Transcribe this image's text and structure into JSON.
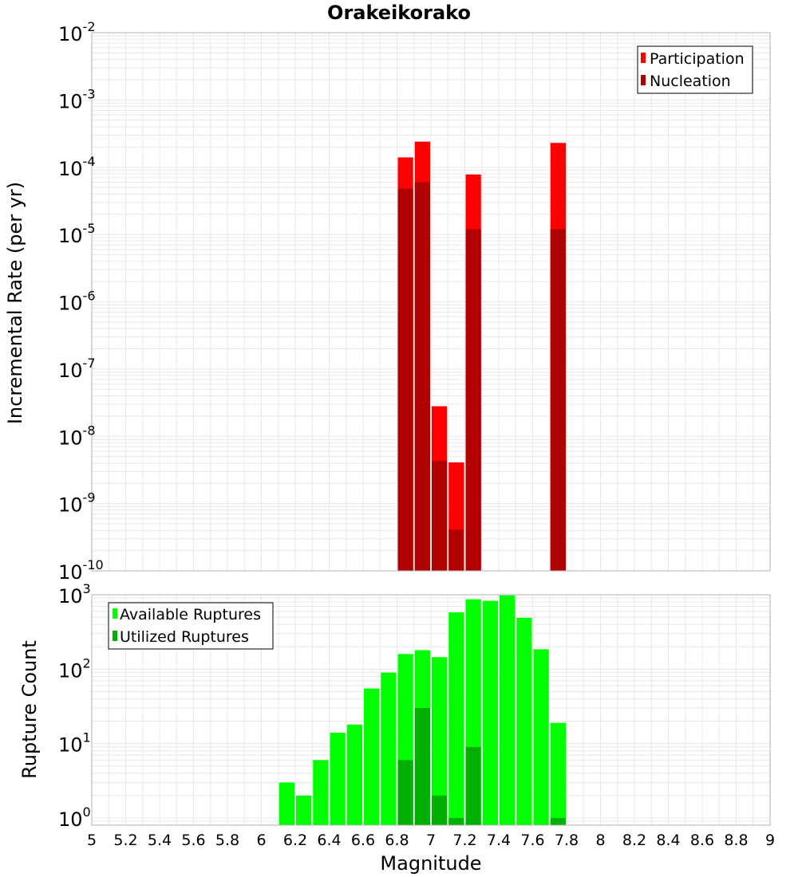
{
  "chart_data": [
    {
      "type": "bar",
      "title": "Orakeikorako",
      "ylabel": "Incremental Rate (per yr)",
      "xlabel": "",
      "yscale": "log",
      "ylim": [
        1e-10,
        0.01
      ],
      "xlim": [
        5,
        9
      ],
      "y_ticks": [
        {
          "base": "10",
          "exp": "-10"
        },
        {
          "base": "10",
          "exp": "-9"
        },
        {
          "base": "10",
          "exp": "-8"
        },
        {
          "base": "10",
          "exp": "-7"
        },
        {
          "base": "10",
          "exp": "-6"
        },
        {
          "base": "10",
          "exp": "-5"
        },
        {
          "base": "10",
          "exp": "-4"
        },
        {
          "base": "10",
          "exp": "-3"
        },
        {
          "base": "10",
          "exp": "-2"
        }
      ],
      "legend_position": "top-right",
      "series": [
        {
          "name": "Participation",
          "color": "#ff0000",
          "x": [
            6.85,
            6.95,
            7.05,
            7.15,
            7.25,
            7.75
          ],
          "values": [
            0.00014,
            0.00024,
            2.8e-08,
            4.1e-09,
            7.8e-05,
            0.00023
          ]
        },
        {
          "name": "Nucleation",
          "color": "#b00000",
          "x": [
            6.85,
            6.95,
            7.05,
            7.15,
            7.25,
            7.75
          ],
          "values": [
            4.8e-05,
            6e-05,
            4.3e-09,
            4.1e-10,
            1.2e-05,
            1.2e-05
          ]
        }
      ]
    },
    {
      "type": "bar",
      "title": "",
      "ylabel": "Rupture Count",
      "xlabel": "Magnitude",
      "yscale": "log",
      "ylim": [
        0.8,
        1000
      ],
      "xlim": [
        5,
        9
      ],
      "x_ticks": [
        "5",
        "5.2",
        "5.4",
        "5.6",
        "5.8",
        "6",
        "6.2",
        "6.4",
        "6.6",
        "6.8",
        "7",
        "7.2",
        "7.4",
        "7.6",
        "7.8",
        "8",
        "8.2",
        "8.4",
        "8.6",
        "8.8",
        "9"
      ],
      "y_ticks": [
        {
          "base": "10",
          "exp": "0"
        },
        {
          "base": "10",
          "exp": "1"
        },
        {
          "base": "10",
          "exp": "2"
        },
        {
          "base": "10",
          "exp": "3"
        }
      ],
      "legend_position": "top-left",
      "series": [
        {
          "name": "Available Ruptures",
          "color": "#00ff00",
          "x": [
            6.15,
            6.25,
            6.35,
            6.45,
            6.55,
            6.65,
            6.75,
            6.85,
            6.95,
            7.05,
            7.15,
            7.25,
            7.35,
            7.45,
            7.55,
            7.65,
            7.75
          ],
          "values": [
            3,
            2,
            6,
            14,
            18,
            55,
            90,
            160,
            180,
            145,
            580,
            870,
            830,
            980,
            490,
            185,
            19
          ]
        },
        {
          "name": "Utilized Ruptures",
          "color": "#00b000",
          "x": [
            6.85,
            6.95,
            7.05,
            7.15,
            7.25,
            7.75
          ],
          "values": [
            6,
            30,
            2,
            1,
            9,
            1
          ]
        }
      ]
    }
  ]
}
